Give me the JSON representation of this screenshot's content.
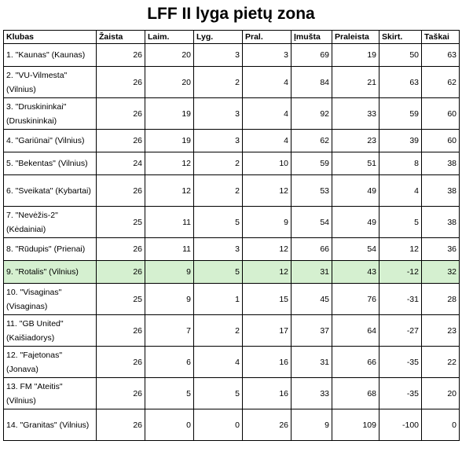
{
  "title": "LFF II lyga pietų zona",
  "columns": [
    "Klubas",
    "Žaista",
    "Laim.",
    "Lyg.",
    "Pral.",
    "Įmušta",
    "Praleista",
    "Skirt.",
    "Taškai"
  ],
  "rows": [
    {
      "club": "1. \"Kaunas\" (Kaunas)",
      "played": "26",
      "won": "20",
      "drawn": "3",
      "lost": "3",
      "scored": "69",
      "conceded": "19",
      "diff": "50",
      "points": "63",
      "two_line": false,
      "highlight": false
    },
    {
      "club": "2. \"VU-Vilmesta\" (Vilnius)",
      "played": "26",
      "won": "20",
      "drawn": "2",
      "lost": "4",
      "scored": "84",
      "conceded": "21",
      "diff": "63",
      "points": "62",
      "two_line": true,
      "highlight": false
    },
    {
      "club": "3. \"Druskininkai\" (Druskininkai)",
      "played": "26",
      "won": "19",
      "drawn": "3",
      "lost": "4",
      "scored": "92",
      "conceded": "33",
      "diff": "59",
      "points": "60",
      "two_line": true,
      "highlight": false
    },
    {
      "club": "4. \"Gariūnai\" (Vilnius)",
      "played": "26",
      "won": "19",
      "drawn": "3",
      "lost": "4",
      "scored": "62",
      "conceded": "23",
      "diff": "39",
      "points": "60",
      "two_line": false,
      "highlight": false
    },
    {
      "club": "5. \"Bekentas\" (Vilnius)",
      "played": "24",
      "won": "12",
      "drawn": "2",
      "lost": "10",
      "scored": "59",
      "conceded": "51",
      "diff": "8",
      "points": "38",
      "two_line": false,
      "highlight": false
    },
    {
      "club": "6. \"Sveikata\" (Kybartai)",
      "played": "26",
      "won": "12",
      "drawn": "2",
      "lost": "12",
      "scored": "53",
      "conceded": "49",
      "diff": "4",
      "points": "38",
      "two_line": true,
      "highlight": false
    },
    {
      "club": "7. \"Nevėžis-2\" (Kėdainiai)",
      "played": "25",
      "won": "11",
      "drawn": "5",
      "lost": "9",
      "scored": "54",
      "conceded": "49",
      "diff": "5",
      "points": "38",
      "two_line": true,
      "highlight": false
    },
    {
      "club": "8. \"Rūdupis\" (Prienai)",
      "played": "26",
      "won": "11",
      "drawn": "3",
      "lost": "12",
      "scored": "66",
      "conceded": "54",
      "diff": "12",
      "points": "36",
      "two_line": false,
      "highlight": false
    },
    {
      "club": "9. \"Rotalis\" (Vilnius)",
      "played": "26",
      "won": "9",
      "drawn": "5",
      "lost": "12",
      "scored": "31",
      "conceded": "43",
      "diff": "-12",
      "points": "32",
      "two_line": false,
      "highlight": true
    },
    {
      "club": "10. \"Visaginas\" (Visaginas)",
      "played": "25",
      "won": "9",
      "drawn": "1",
      "lost": "15",
      "scored": "45",
      "conceded": "76",
      "diff": "-31",
      "points": "28",
      "two_line": true,
      "highlight": false
    },
    {
      "club": "11. \"GB United\" (Kaišiadorys)",
      "played": "26",
      "won": "7",
      "drawn": "2",
      "lost": "17",
      "scored": "37",
      "conceded": "64",
      "diff": "-27",
      "points": "23",
      "two_line": true,
      "highlight": false
    },
    {
      "club": "12. \"Fajetonas\" (Jonava)",
      "played": "26",
      "won": "6",
      "drawn": "4",
      "lost": "16",
      "scored": "31",
      "conceded": "66",
      "diff": "-35",
      "points": "22",
      "two_line": true,
      "highlight": false
    },
    {
      "club": "13. FM \"Ateitis\" (Vilnius)",
      "played": "26",
      "won": "5",
      "drawn": "5",
      "lost": "16",
      "scored": "33",
      "conceded": "68",
      "diff": "-35",
      "points": "20",
      "two_line": true,
      "highlight": false
    },
    {
      "club": "14. \"Granitas\" (Vilnius)",
      "played": "26",
      "won": "0",
      "drawn": "0",
      "lost": "26",
      "scored": "9",
      "conceded": "109",
      "diff": "-100",
      "points": "0",
      "two_line": true,
      "highlight": false
    }
  ],
  "highlight_color": "#d5f0d0"
}
